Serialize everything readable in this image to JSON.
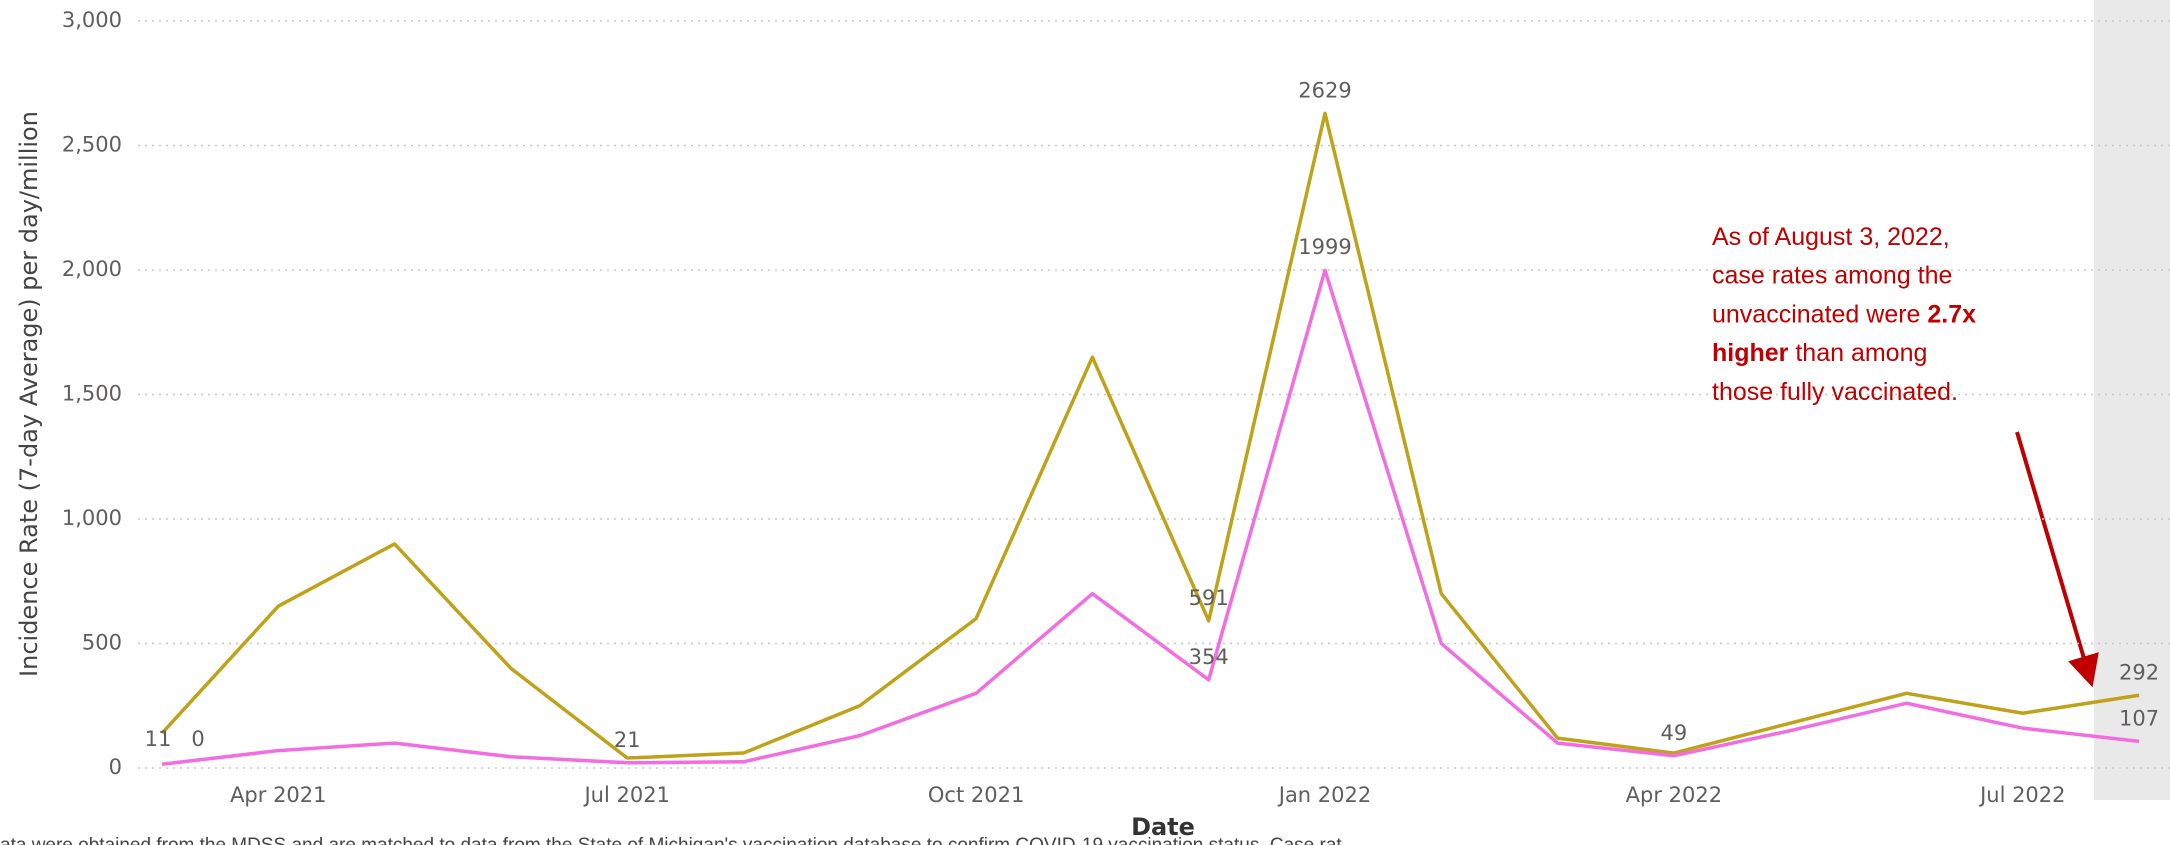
{
  "chart_data": {
    "type": "line",
    "x_label": "Date",
    "y_label": "Incidence Rate (7-day Average) per day/million",
    "x": [
      "2021-03",
      "2021-04",
      "2021-05",
      "2021-06",
      "2021-07",
      "2021-08",
      "2021-09",
      "2021-10",
      "2021-11",
      "2021-12",
      "2022-01",
      "2022-02",
      "2022-03",
      "2022-04",
      "2022-05",
      "2022-06",
      "2022-07",
      "2022-08"
    ],
    "xticks": [
      {
        "value": "2021-04",
        "label": "Apr 2021"
      },
      {
        "value": "2021-07",
        "label": "Jul 2021"
      },
      {
        "value": "2021-10",
        "label": "Oct 2021"
      },
      {
        "value": "2022-01",
        "label": "Jan 2022"
      },
      {
        "value": "2022-04",
        "label": "Apr 2022"
      },
      {
        "value": "2022-07",
        "label": "Jul 2022"
      }
    ],
    "series": [
      {
        "color": "#c0a21a",
        "values": [
          140,
          650,
          900,
          400,
          40,
          60,
          250,
          600,
          1650,
          591,
          2629,
          700,
          120,
          60,
          180,
          300,
          220,
          292
        ],
        "value_labels": [
          null,
          null,
          null,
          null,
          null,
          null,
          null,
          null,
          null,
          "591",
          "2629",
          null,
          null,
          null,
          null,
          null,
          null,
          "292"
        ]
      },
      {
        "color": "#f26ee0",
        "values": [
          15,
          70,
          100,
          45,
          21,
          25,
          130,
          300,
          700,
          354,
          1999,
          500,
          100,
          49,
          150,
          260,
          160,
          107
        ],
        "value_labels": [
          null,
          null,
          null,
          null,
          "21",
          null,
          null,
          null,
          null,
          "354",
          "1999",
          null,
          null,
          "49",
          null,
          null,
          null,
          "107"
        ]
      }
    ],
    "annotations": [
      "11",
      "0"
    ],
    "ylim": [
      0,
      3000
    ],
    "yticks": [
      0,
      500,
      {
        "value": 1000,
        "label": "1,000"
      },
      {
        "value": 1500,
        "label": "1,500"
      },
      {
        "value": 2000,
        "label": "2,000"
      },
      {
        "value": 2500,
        "label": "2,500"
      },
      {
        "value": 3000,
        "label": "3,000"
      }
    ],
    "grid": true,
    "annotation": {
      "color": "#c00000",
      "lines": [
        [
          {
            "text": "As of August 3, 2022,"
          }
        ],
        [
          {
            "text": "case rates among the"
          }
        ],
        [
          {
            "text": "unvaccinated were "
          },
          {
            "text": "2.7x",
            "bold": true
          }
        ],
        [
          {
            "text": "higher",
            "bold": true
          },
          {
            "text": " than among"
          }
        ],
        [
          {
            "text": "those fully vaccinated."
          }
        ]
      ]
    },
    "footnote": "ata were obtained from the MDSS and are matched to data from the State of Michigan's vaccination database to confirm COVID-19 vaccination status. Case rat"
  }
}
